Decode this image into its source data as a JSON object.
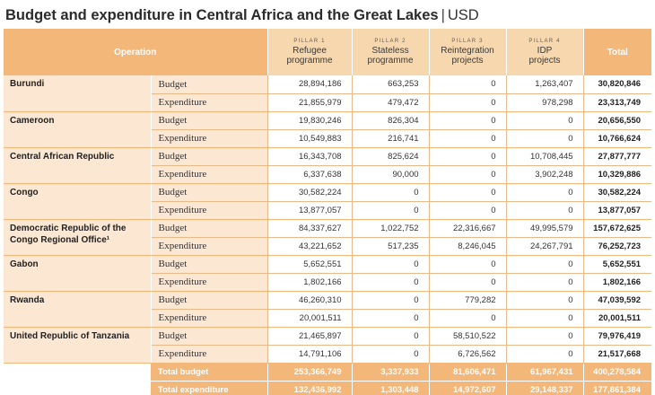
{
  "title": {
    "main": "Budget and expenditure in Central Africa and the Great Lakes",
    "separator": "|",
    "unit": "USD"
  },
  "header": {
    "operation": "Operation",
    "total": "Total",
    "pillars": [
      {
        "tag": "PILLAR 1",
        "name_line1": "Refugee",
        "name_line2": "programme"
      },
      {
        "tag": "PILLAR 2",
        "name_line1": "Stateless",
        "name_line2": "programme"
      },
      {
        "tag": "PILLAR 3",
        "name_line1": "Reintegration",
        "name_line2": "projects"
      },
      {
        "tag": "PILLAR 4",
        "name_line1": "IDP",
        "name_line2": "projects"
      }
    ]
  },
  "budget_label": "Budget",
  "expenditure_label": "Expenditure",
  "operations": [
    {
      "name": "Burundi",
      "budget": [
        "28,894,186",
        "663,253",
        "0",
        "1,263,407",
        "30,820,846"
      ],
      "expenditure": [
        "21,855,979",
        "479,472",
        "0",
        "978,298",
        "23,313,749"
      ]
    },
    {
      "name": "Cameroon",
      "budget": [
        "19,830,246",
        "826,304",
        "0",
        "0",
        "20,656,550"
      ],
      "expenditure": [
        "10,549,883",
        "216,741",
        "0",
        "0",
        "10,766,624"
      ]
    },
    {
      "name": "Central African Republic",
      "budget": [
        "16,343,708",
        "825,624",
        "0",
        "10,708,445",
        "27,877,777"
      ],
      "expenditure": [
        "6,337,638",
        "90,000",
        "0",
        "3,902,248",
        "10,329,886"
      ]
    },
    {
      "name": "Congo",
      "budget": [
        "30,582,224",
        "0",
        "0",
        "0",
        "30,582,224"
      ],
      "expenditure": [
        "13,877,057",
        "0",
        "0",
        "0",
        "13,877,057"
      ]
    },
    {
      "name": "Democratic Republic of the Congo Regional Office¹",
      "budget": [
        "84,337,627",
        "1,022,752",
        "22,316,667",
        "49,995,579",
        "157,672,625"
      ],
      "expenditure": [
        "43,221,652",
        "517,235",
        "8,246,045",
        "24,267,791",
        "76,252,723"
      ]
    },
    {
      "name": "Gabon",
      "budget": [
        "5,652,551",
        "0",
        "0",
        "0",
        "5,652,551"
      ],
      "expenditure": [
        "1,802,166",
        "0",
        "0",
        "0",
        "1,802,166"
      ]
    },
    {
      "name": "Rwanda",
      "budget": [
        "46,260,310",
        "0",
        "779,282",
        "0",
        "47,039,592"
      ],
      "expenditure": [
        "20,001,511",
        "0",
        "0",
        "0",
        "20,001,511"
      ]
    },
    {
      "name": "United Republic of Tanzania",
      "budget": [
        "21,465,897",
        "0",
        "58,510,522",
        "0",
        "79,976,419"
      ],
      "expenditure": [
        "14,791,106",
        "0",
        "6,726,562",
        "0",
        "21,517,668"
      ]
    }
  ],
  "totals": [
    {
      "label": "Total budget",
      "values": [
        "253,366,749",
        "3,337,933",
        "81,606,471",
        "61,967,431",
        "400,278,584"
      ]
    },
    {
      "label": "Total expenditure",
      "values": [
        "132,436,992",
        "1,303,448",
        "14,972,607",
        "29,148,337",
        "177,861,384"
      ]
    }
  ]
}
